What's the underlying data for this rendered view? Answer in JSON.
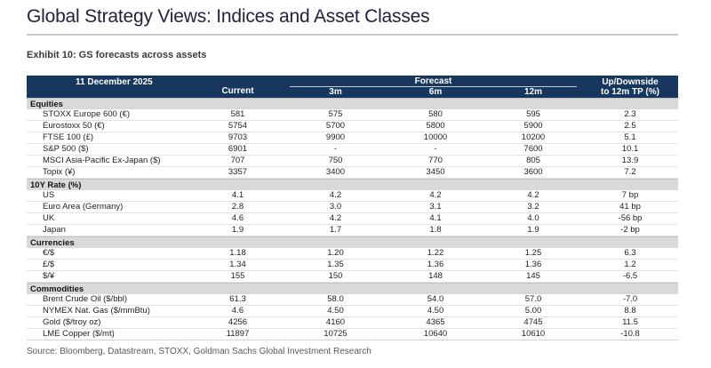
{
  "page": {
    "title": "Global Strategy Views: Indices and Asset Classes",
    "exhibit": "Exhibit 10: GS forecasts across assets",
    "source": "Source: Bloomberg, Datastream, STOXX, Goldman Sachs Global Investment Research"
  },
  "colors": {
    "header_bg": "#17375E",
    "section_bg": "#D9D9D9",
    "title_rule": "#C9C9C9"
  },
  "table": {
    "date": "11 December 2025",
    "current_label": "Current",
    "forecast_label": "Forecast",
    "forecast_columns": [
      "3m",
      "6m",
      "12m"
    ],
    "updown_label_line1": "Up/Downside",
    "updown_label_line2": "to 12m TP (%)",
    "sections": [
      {
        "name": "Equities",
        "rows": [
          {
            "label": "STOXX Europe 600 (€)",
            "values": [
              "581",
              "575",
              "580",
              "595",
              "2.3"
            ]
          },
          {
            "label": "Eurostoxx 50 (€)",
            "values": [
              "5754",
              "5700",
              "5800",
              "5900",
              "2.5"
            ]
          },
          {
            "label": "FTSE 100 (£)",
            "values": [
              "9703",
              "9900",
              "10000",
              "10200",
              "5.1"
            ]
          },
          {
            "label": "S&P 500 ($)",
            "values": [
              "6901",
              "-",
              "-",
              "7600",
              "10.1"
            ]
          },
          {
            "label": "MSCI Asia-Pacific Ex-Japan ($)",
            "values": [
              "707",
              "750",
              "770",
              "805",
              "13.9"
            ]
          },
          {
            "label": "Topix (¥)",
            "values": [
              "3357",
              "3400",
              "3450",
              "3600",
              "7.2"
            ]
          }
        ]
      },
      {
        "name": "10Y Rate (%)",
        "rows": [
          {
            "label": "US",
            "values": [
              "4.1",
              "4.2",
              "4.2",
              "4.2",
              "7 bp"
            ]
          },
          {
            "label": "Euro Area (Germany)",
            "values": [
              "2.8",
              "3.0",
              "3.1",
              "3.2",
              "41 bp"
            ]
          },
          {
            "label": "UK",
            "values": [
              "4.6",
              "4.2",
              "4.1",
              "4.0",
              "-56 bp"
            ]
          },
          {
            "label": "Japan",
            "values": [
              "1.9",
              "1.7",
              "1.8",
              "1.9",
              "-2 bp"
            ]
          }
        ]
      },
      {
        "name": "Currencies",
        "rows": [
          {
            "label": "€/$",
            "values": [
              "1.18",
              "1.20",
              "1.22",
              "1.25",
              "6.3"
            ]
          },
          {
            "label": "£/$",
            "values": [
              "1.34",
              "1.35",
              "1.36",
              "1.36",
              "1.2"
            ]
          },
          {
            "label": "$/¥",
            "values": [
              "155",
              "150",
              "148",
              "145",
              "-6.5"
            ]
          }
        ]
      },
      {
        "name": "Commodities",
        "rows": [
          {
            "label": "Brent Crude Oil ($/bbl)",
            "values": [
              "61.3",
              "58.0",
              "54.0",
              "57.0",
              "-7.0"
            ]
          },
          {
            "label": "NYMEX Nat. Gas ($/mmBtu)",
            "values": [
              "4.6",
              "4.50",
              "4.50",
              "5.00",
              "8.8"
            ]
          },
          {
            "label": "Gold ($/troy oz)",
            "values": [
              "4256",
              "4160",
              "4365",
              "4745",
              "11.5"
            ]
          },
          {
            "label": "LME Copper ($/mt)",
            "values": [
              "11897",
              "10725",
              "10640",
              "10610",
              "-10.8"
            ]
          }
        ]
      }
    ]
  }
}
